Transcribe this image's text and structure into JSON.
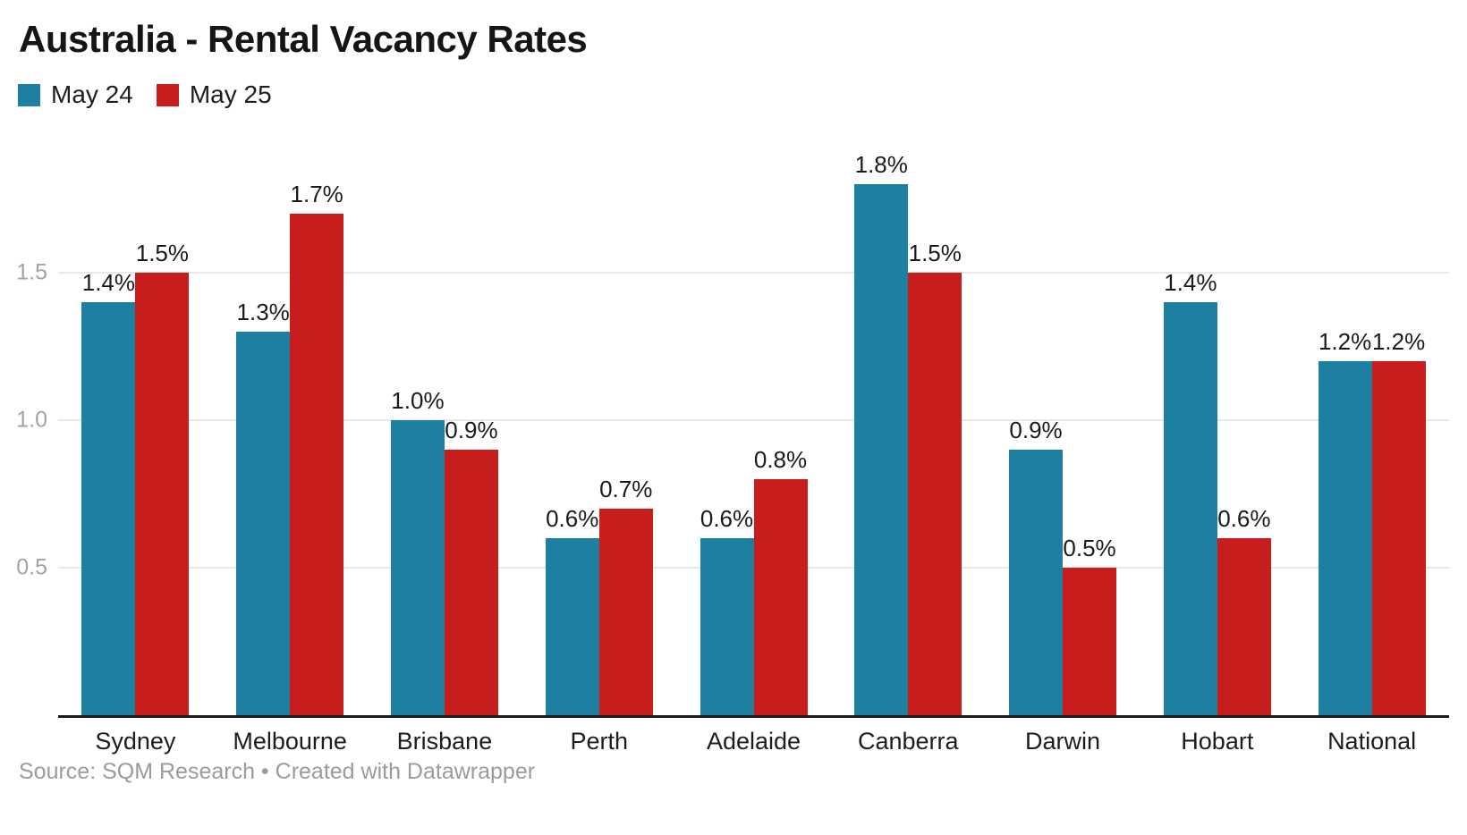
{
  "title": "Australia - Rental Vacancy Rates",
  "footer": "Source: SQM Research • Created with Datawrapper",
  "legend": {
    "items": [
      {
        "label": "May 24",
        "color": "#1e80a0"
      },
      {
        "label": "May 25",
        "color": "#c71e1d"
      }
    ]
  },
  "colors": {
    "background": "#ffffff",
    "title": "#151515",
    "gridline": "#e8e8e8",
    "axis_line": "#1a1a1a",
    "tick_label": "#a3a3a3",
    "category_label": "#1d1d1d",
    "value_label": "#1a1a1a",
    "footer": "#9b9b9b",
    "series_may24": "#1e80a0",
    "series_may25": "#c71e1d"
  },
  "chart_data": {
    "type": "bar",
    "title": "Australia - Rental Vacancy Rates",
    "xlabel": "",
    "ylabel": "",
    "categories": [
      "Sydney",
      "Melbourne",
      "Brisbane",
      "Perth",
      "Adelaide",
      "Canberra",
      "Darwin",
      "Hobart",
      "National"
    ],
    "series": [
      {
        "name": "May 24",
        "color": "#1e80a0",
        "values": [
          1.4,
          1.3,
          1.0,
          0.6,
          0.6,
          1.8,
          0.9,
          1.4,
          1.2
        ],
        "labels": [
          "1.4%",
          "1.3%",
          "1.0%",
          "0.6%",
          "0.6%",
          "1.8%",
          "0.9%",
          "1.4%",
          "1.2%"
        ]
      },
      {
        "name": "May 25",
        "color": "#c71e1d",
        "values": [
          1.5,
          1.7,
          0.9,
          0.7,
          0.8,
          1.5,
          0.5,
          0.6,
          1.2
        ],
        "labels": [
          "1.5%",
          "1.7%",
          "0.9%",
          "0.7%",
          "0.8%",
          "1.5%",
          "0.5%",
          "0.6%",
          "1.2%"
        ]
      }
    ],
    "ylim": [
      0,
      2.0
    ],
    "yticks": [
      {
        "value": 0.5,
        "label": "0.5"
      },
      {
        "value": 1.0,
        "label": "1.0"
      },
      {
        "value": 1.5,
        "label": "1.5"
      }
    ],
    "grid": true,
    "legend_position": "top-left",
    "value_label_format": "percent"
  }
}
